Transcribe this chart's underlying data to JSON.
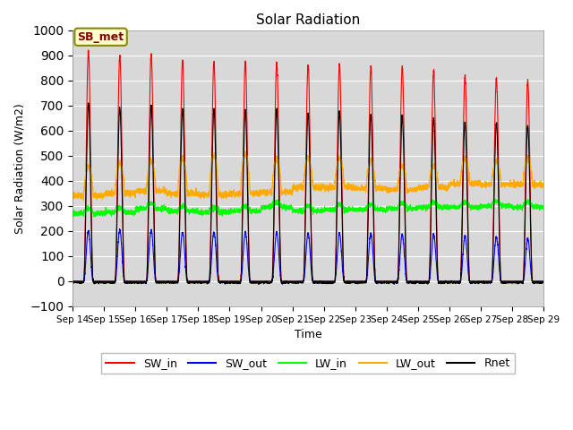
{
  "title": "Solar Radiation",
  "xlabel": "Time",
  "ylabel": "Solar Radiation (W/m2)",
  "ylim": [
    -100,
    1000
  ],
  "yticks": [
    -100,
    0,
    100,
    200,
    300,
    400,
    500,
    600,
    700,
    800,
    900,
    1000
  ],
  "background_color": "#d8d8d8",
  "figure_bg": "#ffffff",
  "annotation_text": "SB_met",
  "annotation_bg": "#ffffcc",
  "annotation_border": "#888800",
  "series": {
    "SW_in": {
      "color": "#ff0000",
      "label": "SW_in"
    },
    "SW_out": {
      "color": "#0000ff",
      "label": "SW_out"
    },
    "LW_in": {
      "color": "#00ff00",
      "label": "LW_in"
    },
    "LW_out": {
      "color": "#ffaa00",
      "label": "LW_out"
    },
    "Rnet": {
      "color": "#000000",
      "label": "Rnet"
    }
  },
  "n_days": 15,
  "start_day": 14,
  "end_day": 29,
  "points_per_day": 288,
  "sw_in_peaks": [
    920,
    900,
    905,
    880,
    875,
    875,
    875,
    860,
    865,
    860,
    855,
    840,
    820,
    810,
    800
  ],
  "sw_out_peaks": [
    200,
    205,
    205,
    195,
    195,
    195,
    195,
    190,
    190,
    190,
    185,
    185,
    180,
    175,
    170
  ],
  "rnet_peaks": [
    710,
    695,
    700,
    685,
    685,
    680,
    685,
    670,
    675,
    665,
    660,
    650,
    635,
    630,
    620
  ],
  "lw_in_base": [
    270,
    275,
    290,
    280,
    275,
    280,
    295,
    280,
    285,
    285,
    290,
    295,
    295,
    300,
    295
  ],
  "lw_out_night": [
    340,
    350,
    360,
    350,
    345,
    350,
    355,
    375,
    375,
    370,
    365,
    375,
    390,
    385,
    385
  ],
  "lw_out_peak": [
    460,
    470,
    480,
    490,
    500,
    510,
    490,
    490,
    490,
    480,
    460,
    460,
    490,
    480,
    490
  ]
}
